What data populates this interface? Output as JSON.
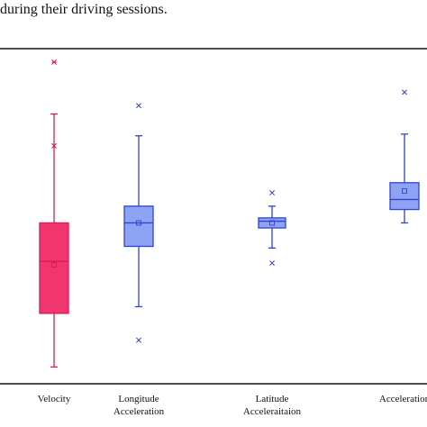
{
  "caption": "during their driving sessions.",
  "colors": {
    "velocity_fill": "#f0356f",
    "velocity_stroke": "#d91c55",
    "accel_fill": "#8fa3f5",
    "accel_stroke": "#2f45cf"
  },
  "chart_data": {
    "type": "box",
    "title": "",
    "xlabel": "",
    "ylabel": "",
    "ylim": [
      0,
      100
    ],
    "grid": false,
    "legend": "none",
    "categories": [
      [
        "Velocity"
      ],
      [
        "Longitude",
        "Acceleration"
      ],
      [
        "Latitude",
        "Acceleraitaion"
      ],
      [
        "Acceleration"
      ]
    ],
    "boxes": [
      {
        "name": "",
        "whisker_low": 5,
        "q1": 21,
        "median": 36.5,
        "q3": 48,
        "whisker_high": 80.5,
        "mean": 35.5,
        "outliers": [
          96,
          71
        ]
      },
      {
        "name": "",
        "whisker_low": 23,
        "q1": 41,
        "median": 48,
        "q3": 53,
        "whisker_high": 74,
        "mean": 48,
        "outliers": [
          83,
          13
        ]
      },
      {
        "name": "",
        "whisker_low": 40.5,
        "q1": 46.5,
        "median": 48.5,
        "q3": 49.5,
        "whisker_high": 53,
        "mean": 48,
        "outliers": [
          57,
          36
        ]
      },
      {
        "name": "",
        "whisker_low": 48,
        "q1": 52,
        "median": 55,
        "q3": 60,
        "whisker_high": 74.5,
        "mean": 57.5,
        "outliers": [
          87
        ]
      }
    ]
  }
}
